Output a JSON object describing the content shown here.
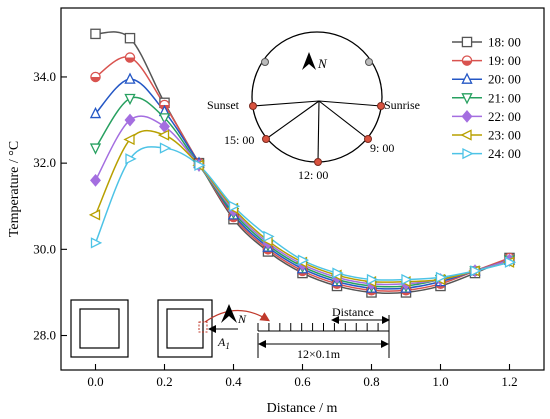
{
  "chart_data": {
    "type": "line",
    "title": "",
    "xlabel": "Distance / m",
    "ylabel": "Temperature / °C",
    "xlim": [
      -0.1,
      1.3
    ],
    "ylim": [
      27.2,
      35.6
    ],
    "xticks": [
      "0.0",
      "0.2",
      "0.4",
      "0.6",
      "0.8",
      "1.0",
      "1.2"
    ],
    "yticks": [
      "28.0",
      "30.0",
      "32.0",
      "34.0"
    ],
    "grid": false,
    "legend_position": "top-right",
    "x": [
      0.0,
      0.1,
      0.2,
      0.3,
      0.4,
      0.5,
      0.6,
      0.7,
      0.8,
      0.9,
      1.0,
      1.1,
      1.2
    ],
    "series": [
      {
        "name": "18: 00",
        "marker": "square",
        "color": "#555555",
        "values": [
          35.0,
          34.9,
          33.4,
          32.0,
          30.7,
          29.95,
          29.45,
          29.15,
          29.0,
          29.0,
          29.15,
          29.45,
          29.8
        ]
      },
      {
        "name": "19: 00",
        "marker": "half-circle",
        "color": "#d9534f",
        "values": [
          34.0,
          34.45,
          33.35,
          32.0,
          30.75,
          30.0,
          29.5,
          29.2,
          29.05,
          29.05,
          29.2,
          29.5,
          29.8
        ]
      },
      {
        "name": "20: 00",
        "marker": "triangle-up",
        "color": "#2457c5",
        "values": [
          33.15,
          33.95,
          33.2,
          32.0,
          30.8,
          30.05,
          29.55,
          29.25,
          29.1,
          29.1,
          29.25,
          29.5,
          29.75
        ]
      },
      {
        "name": "21: 00",
        "marker": "triangle-down",
        "color": "#27a060",
        "values": [
          32.35,
          33.5,
          33.05,
          31.95,
          30.85,
          30.1,
          29.6,
          29.3,
          29.15,
          29.15,
          29.3,
          29.5,
          29.75
        ]
      },
      {
        "name": "22: 00",
        "marker": "diamond",
        "color": "#a46ee0",
        "values": [
          31.6,
          33.0,
          32.85,
          31.95,
          30.9,
          30.15,
          29.65,
          29.35,
          29.2,
          29.2,
          29.3,
          29.5,
          29.75
        ]
      },
      {
        "name": "23: 00",
        "marker": "triangle-left",
        "color": "#b8a000",
        "values": [
          30.8,
          32.55,
          32.65,
          31.95,
          30.95,
          30.2,
          29.7,
          29.4,
          29.25,
          29.25,
          29.3,
          29.5,
          29.7
        ]
      },
      {
        "name": "24: 00",
        "marker": "triangle-right",
        "color": "#4dc3e6",
        "values": [
          30.15,
          32.1,
          32.35,
          31.95,
          31.0,
          30.3,
          29.75,
          29.45,
          29.3,
          29.3,
          29.35,
          29.5,
          29.7
        ]
      }
    ],
    "annotations": {
      "sun_diagram": {
        "north": "N",
        "sunset": "Sunset",
        "sunrise": "Sunrise",
        "t1500": "15: 00",
        "t1200": "12: 00",
        "t0900": "9: 00"
      },
      "plan_diagram": {
        "north": "N",
        "point": "A",
        "point_sub": "1",
        "distance": "Distance",
        "scale": "12×0.1m"
      }
    }
  }
}
